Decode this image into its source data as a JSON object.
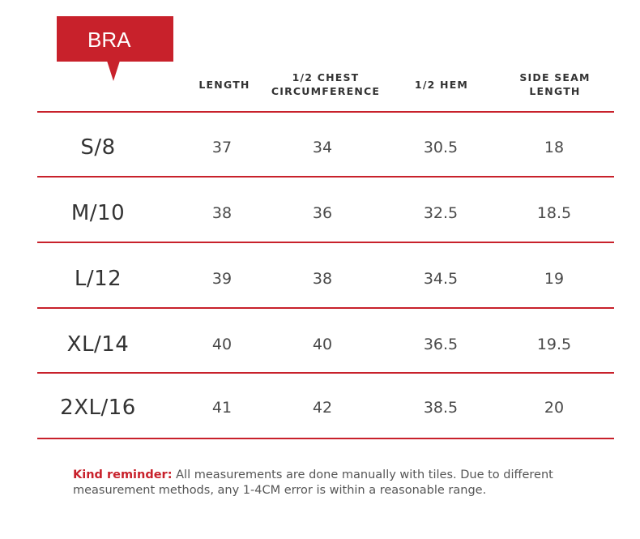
{
  "tag": {
    "label": "BRA"
  },
  "headers": {
    "length": "LENGTH",
    "chest_line1": "1/2 CHEST",
    "chest_line2": "CIRCUMFERENCE",
    "hem": "1/2 HEM",
    "side_line1": "SIDE SEAM",
    "side_line2": "LENGTH"
  },
  "rows": [
    {
      "size": "S/8",
      "length": "37",
      "chest": "34",
      "hem": "30.5",
      "side": "18"
    },
    {
      "size": "M/10",
      "length": "38",
      "chest": "36",
      "hem": "32.5",
      "side": "18.5"
    },
    {
      "size": "L/12",
      "length": "39",
      "chest": "38",
      "hem": "34.5",
      "side": "19"
    },
    {
      "size": "XL/14",
      "length": "40",
      "chest": "40",
      "hem": "36.5",
      "side": "19.5"
    },
    {
      "size": "2XL/16",
      "length": "41",
      "chest": "42",
      "hem": "38.5",
      "side": "20"
    }
  ],
  "note": {
    "label": "Kind reminder:",
    "line1": " All measurements are done manually with tiles. Due to different",
    "line2": " measurement methods, any 1-4CM error is within a reasonable range."
  },
  "colors": {
    "accent": "#c8212b",
    "text": "#333333",
    "muted": "#555555"
  }
}
